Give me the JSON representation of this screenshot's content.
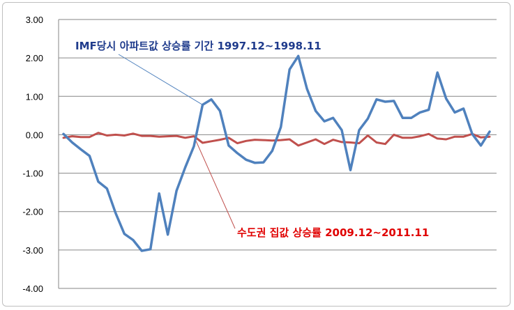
{
  "chart_data": {
    "type": "line",
    "ylim": [
      -4,
      3
    ],
    "y_ticks": [
      "3.00",
      "2.00",
      "1.00",
      "0.00",
      "-1.00",
      "-2.00",
      "-3.00",
      "-4.00"
    ],
    "grid": true,
    "x_labels_shown": false,
    "series": [
      {
        "color": "#4f81bd",
        "values": [
          0.02,
          -0.2,
          -0.38,
          -0.55,
          -1.22,
          -1.4,
          -2.04,
          -2.58,
          -2.74,
          -3.02,
          -2.98,
          -1.53,
          -2.6,
          -1.46,
          -0.85,
          -0.3,
          0.78,
          0.92,
          0.62,
          -0.28,
          -0.48,
          -0.65,
          -0.73,
          -0.72,
          -0.42,
          0.2,
          1.7,
          2.05,
          1.2,
          0.62,
          0.35,
          0.44,
          0.12,
          -0.92,
          0.12,
          0.42,
          0.92,
          0.86,
          0.88,
          0.44,
          0.44,
          0.58,
          0.65,
          1.62,
          0.94,
          0.58,
          0.68,
          0.02,
          -0.28,
          0.08
        ]
      },
      {
        "color": "#c0504d",
        "values": [
          -0.08,
          -0.04,
          -0.06,
          -0.06,
          0.05,
          -0.02,
          0.0,
          -0.02,
          0.03,
          -0.03,
          -0.03,
          -0.05,
          -0.04,
          -0.03,
          -0.08,
          -0.04,
          -0.21,
          -0.17,
          -0.13,
          -0.08,
          -0.22,
          -0.16,
          -0.13,
          -0.14,
          -0.15,
          -0.14,
          -0.12,
          -0.28,
          -0.2,
          -0.12,
          -0.24,
          -0.13,
          -0.19,
          -0.2,
          -0.22,
          -0.02,
          -0.2,
          -0.24,
          0.0,
          -0.08,
          -0.08,
          -0.04,
          0.02,
          -0.1,
          -0.12,
          -0.05,
          -0.05,
          0.02,
          -0.07,
          -0.05
        ]
      }
    ],
    "annotations": [
      {
        "text": "IMF당시  아파트값 상승률 기간 1997.12~1998.11",
        "color": "#1f3b8c"
      },
      {
        "text": "수도권 집값 상승률  2009.12~2011.11",
        "color": "#e00000"
      }
    ]
  }
}
